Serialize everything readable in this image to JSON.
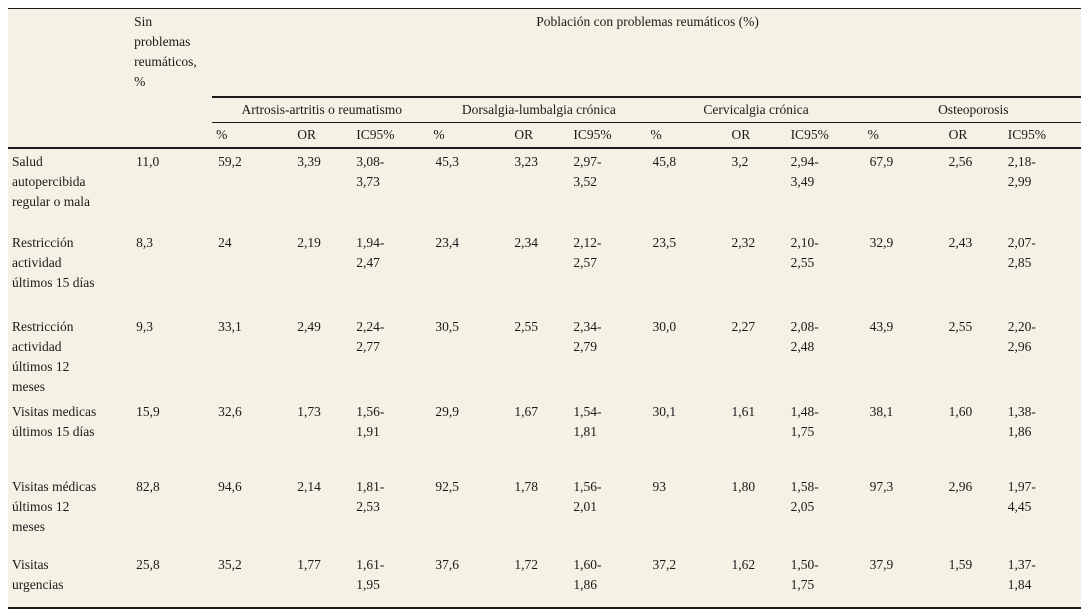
{
  "colors": {
    "page_background": "#ffffff",
    "table_background": "#f5f1e4",
    "rule_color": "#1a1a1a",
    "text_color": "#1a1a1a"
  },
  "table": {
    "no_problems_header": "Sin problemas reumáticos, %",
    "population_header": "Población con problemas reumáticos (%)",
    "groups": [
      "Artrosis-artritis o reumatismo",
      "Dorsalgia-lumbalgia crónica",
      "Cervicalgia crónica",
      "Osteoporosis"
    ],
    "subheaders": [
      "%",
      "OR",
      "IC95%"
    ],
    "rows": [
      {
        "label": "Salud autopercibida regular o mala",
        "no_problems": "11,0",
        "values": [
          "59,2",
          "3,39",
          "3,08-\n3,73",
          "45,3",
          "3,23",
          "2,97-\n3,52",
          "45,8",
          "3,2",
          "2,94-\n3,49",
          "67,9",
          "2,56",
          "2,18-\n2,99"
        ]
      },
      {
        "label": "Restricción actividad últimos 15 días",
        "no_problems": "8,3",
        "values": [
          "24",
          "2,19",
          "1,94-\n2,47",
          "23,4",
          "2,34",
          "2,12-\n2,57",
          "23,5",
          "2,32",
          "2,10-\n2,55",
          "32,9",
          "2,43",
          "2,07-\n2,85"
        ]
      },
      {
        "label": "Restricción actividad últimos 12 meses",
        "no_problems": "9,3",
        "values": [
          "33,1",
          "2,49",
          "2,24-\n2,77",
          "30,5",
          "2,55",
          "2,34-\n2,79",
          "30,0",
          "2,27",
          "2,08-\n2,48",
          "43,9",
          "2,55",
          "2,20-\n2,96"
        ]
      },
      {
        "label": "Visitas medicas últimos 15 días",
        "no_problems": "15,9",
        "values": [
          "32,6",
          "1,73",
          "1,56-\n1,91",
          "29,9",
          "1,67",
          "1,54-\n1,81",
          "30,1",
          "1,61",
          "1,48-\n1,75",
          "38,1",
          "1,60",
          "1,38-\n1,86"
        ]
      },
      {
        "label": "Visitas médicas últimos 12 meses",
        "no_problems": "82,8",
        "values": [
          "94,6",
          "2,14",
          "1,81-\n2,53",
          "92,5",
          "1,78",
          "1,56-\n2,01",
          "93",
          "1,80",
          "1,58-\n2,05",
          "97,3",
          "2,96",
          "1,97-\n4,45"
        ]
      },
      {
        "label": "Visitas urgencias",
        "no_problems": "25,8",
        "values": [
          "35,2",
          "1,77",
          "1,61-\n1,95",
          "37,6",
          "1,72",
          "1,60-\n1,86",
          "37,2",
          "1,62",
          "1,50-\n1,75",
          "37,9",
          "1,59",
          "1,37-\n1,84"
        ]
      }
    ]
  }
}
